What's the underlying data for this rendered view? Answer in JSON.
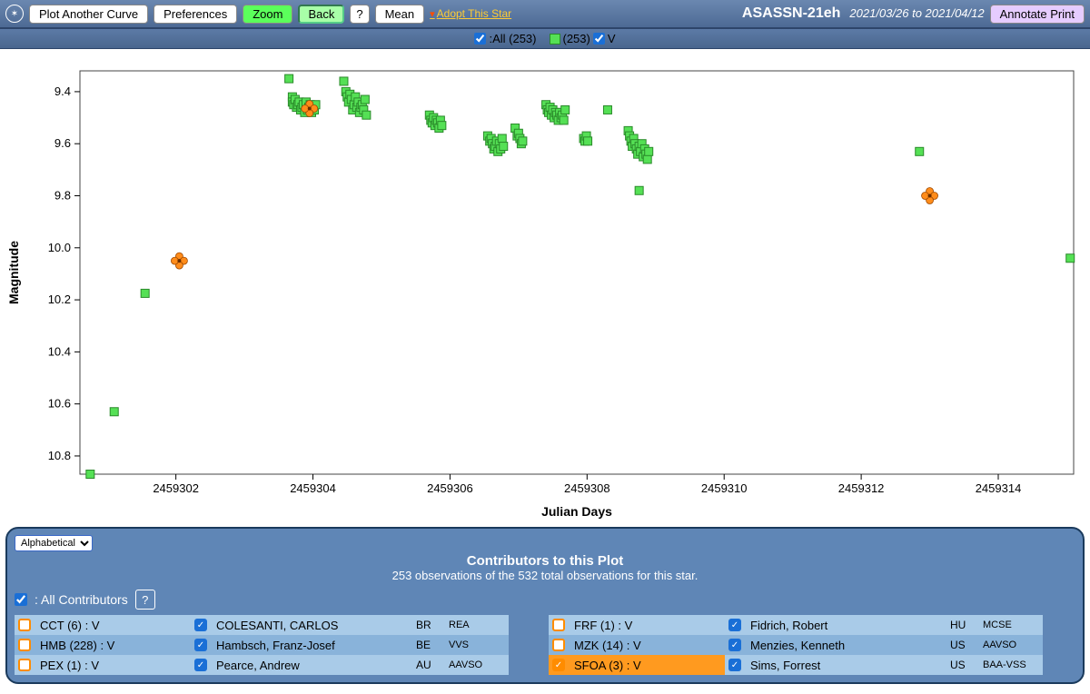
{
  "toolbar": {
    "plot_another": "Plot Another Curve",
    "preferences": "Preferences",
    "zoom": "Zoom",
    "back": "Back",
    "help": "?",
    "mean": "Mean",
    "adopt": "Adopt This Star",
    "annotate": "Annotate Print",
    "star_name": "ASASSN-21eh",
    "date_range": "2021/03/26 to 2021/04/12"
  },
  "legend": {
    "all_label": ":All (253)",
    "series_label": "(253)",
    "band": "V"
  },
  "chart": {
    "type": "scatter",
    "x_label": "Julian Days",
    "y_label": "Magnitude",
    "background": "#ffffff",
    "border": "#444444",
    "tick_font": 13,
    "label_font": 14,
    "x_ticks": [
      2459302,
      2459304,
      2459306,
      2459308,
      2459310,
      2459312,
      2459314
    ],
    "y_ticks": [
      9.4,
      9.6,
      9.8,
      10.0,
      10.2,
      10.4,
      10.6,
      10.8
    ],
    "xlim": [
      2459300.6,
      2459315.1
    ],
    "ylim": [
      10.87,
      9.32
    ],
    "marker_size": 9,
    "marker_color": "#55e055",
    "marker_stroke": "#2a8a2a",
    "alt_marker_color": "#ff8c1a",
    "points_green": [
      [
        2459300.75,
        10.87
      ],
      [
        2459301.1,
        10.63
      ],
      [
        2459301.55,
        10.175
      ],
      [
        2459303.65,
        9.35
      ],
      [
        2459303.7,
        9.42
      ],
      [
        2459303.7,
        9.44
      ],
      [
        2459303.72,
        9.45
      ],
      [
        2459303.74,
        9.43
      ],
      [
        2459303.76,
        9.46
      ],
      [
        2459303.78,
        9.45
      ],
      [
        2459303.8,
        9.44
      ],
      [
        2459303.82,
        9.47
      ],
      [
        2459303.84,
        9.46
      ],
      [
        2459303.86,
        9.45
      ],
      [
        2459303.88,
        9.48
      ],
      [
        2459303.9,
        9.44
      ],
      [
        2459303.92,
        9.47
      ],
      [
        2459303.94,
        9.46
      ],
      [
        2459303.96,
        9.45
      ],
      [
        2459303.98,
        9.48
      ],
      [
        2459304.0,
        9.46
      ],
      [
        2459304.02,
        9.47
      ],
      [
        2459304.04,
        9.45
      ],
      [
        2459304.45,
        9.36
      ],
      [
        2459304.48,
        9.4
      ],
      [
        2459304.5,
        9.42
      ],
      [
        2459304.52,
        9.44
      ],
      [
        2459304.54,
        9.41
      ],
      [
        2459304.56,
        9.43
      ],
      [
        2459304.58,
        9.47
      ],
      [
        2459304.6,
        9.45
      ],
      [
        2459304.62,
        9.42
      ],
      [
        2459304.64,
        9.46
      ],
      [
        2459304.66,
        9.44
      ],
      [
        2459304.68,
        9.48
      ],
      [
        2459304.7,
        9.46
      ],
      [
        2459304.72,
        9.45
      ],
      [
        2459304.74,
        9.47
      ],
      [
        2459304.76,
        9.43
      ],
      [
        2459304.78,
        9.49
      ],
      [
        2459305.7,
        9.49
      ],
      [
        2459305.72,
        9.51
      ],
      [
        2459305.74,
        9.52
      ],
      [
        2459305.76,
        9.5
      ],
      [
        2459305.78,
        9.53
      ],
      [
        2459305.8,
        9.51
      ],
      [
        2459305.82,
        9.52
      ],
      [
        2459305.84,
        9.54
      ],
      [
        2459305.86,
        9.51
      ],
      [
        2459305.88,
        9.53
      ],
      [
        2459306.55,
        9.57
      ],
      [
        2459306.58,
        9.59
      ],
      [
        2459306.6,
        9.58
      ],
      [
        2459306.62,
        9.6
      ],
      [
        2459306.64,
        9.62
      ],
      [
        2459306.66,
        9.61
      ],
      [
        2459306.68,
        9.59
      ],
      [
        2459306.7,
        9.63
      ],
      [
        2459306.72,
        9.6
      ],
      [
        2459306.74,
        9.62
      ],
      [
        2459306.76,
        9.58
      ],
      [
        2459306.78,
        9.61
      ],
      [
        2459306.95,
        9.54
      ],
      [
        2459306.98,
        9.57
      ],
      [
        2459307.0,
        9.56
      ],
      [
        2459307.02,
        9.58
      ],
      [
        2459307.04,
        9.6
      ],
      [
        2459307.06,
        9.59
      ],
      [
        2459307.4,
        9.45
      ],
      [
        2459307.42,
        9.47
      ],
      [
        2459307.44,
        9.48
      ],
      [
        2459307.46,
        9.46
      ],
      [
        2459307.48,
        9.49
      ],
      [
        2459307.5,
        9.47
      ],
      [
        2459307.52,
        9.5
      ],
      [
        2459307.54,
        9.48
      ],
      [
        2459307.56,
        9.49
      ],
      [
        2459307.58,
        9.51
      ],
      [
        2459307.6,
        9.48
      ],
      [
        2459307.62,
        9.5
      ],
      [
        2459307.64,
        9.49
      ],
      [
        2459307.66,
        9.51
      ],
      [
        2459307.68,
        9.47
      ],
      [
        2459307.95,
        9.58
      ],
      [
        2459307.97,
        9.59
      ],
      [
        2459307.99,
        9.57
      ],
      [
        2459308.01,
        9.59
      ],
      [
        2459308.3,
        9.47
      ],
      [
        2459308.6,
        9.55
      ],
      [
        2459308.62,
        9.57
      ],
      [
        2459308.64,
        9.59
      ],
      [
        2459308.66,
        9.61
      ],
      [
        2459308.68,
        9.58
      ],
      [
        2459308.7,
        9.6
      ],
      [
        2459308.72,
        9.62
      ],
      [
        2459308.74,
        9.64
      ],
      [
        2459308.76,
        9.61
      ],
      [
        2459308.78,
        9.63
      ],
      [
        2459308.8,
        9.6
      ],
      [
        2459308.82,
        9.65
      ],
      [
        2459308.84,
        9.62
      ],
      [
        2459308.86,
        9.64
      ],
      [
        2459308.88,
        9.66
      ],
      [
        2459308.9,
        9.63
      ],
      [
        2459308.76,
        9.78
      ],
      [
        2459312.85,
        9.63
      ],
      [
        2459315.05,
        10.04
      ]
    ],
    "points_orange": [
      [
        2459302.05,
        10.05
      ],
      [
        2459303.95,
        9.465
      ],
      [
        2459313.0,
        9.8
      ]
    ]
  },
  "contributors": {
    "sort_label": "Alphabetical",
    "title": "Contributors to this Plot",
    "subtitle": "253 observations of the 532 total observations for this star.",
    "all_label": ": All Contributors",
    "help": "?",
    "rows": [
      {
        "cb1_checked": false,
        "cb1_filled": false,
        "obs_label": "CCT (6) : V",
        "cb2": true,
        "name": "COLESANTI, CARLOS",
        "cc": "BR",
        "affil": "REA",
        "shade": "light",
        "highlight": false
      },
      {
        "cb1_checked": false,
        "cb1_filled": false,
        "obs_label": "HMB (228) : V",
        "cb2": true,
        "name": "Hambsch, Franz-Josef",
        "cc": "BE",
        "affil": "VVS",
        "shade": "mid",
        "highlight": false
      },
      {
        "cb1_checked": false,
        "cb1_filled": false,
        "obs_label": "PEX (1) : V",
        "cb2": true,
        "name": "Pearce, Andrew",
        "cc": "AU",
        "affil": "AAVSO",
        "shade": "light",
        "highlight": false
      },
      {
        "cb1_checked": false,
        "cb1_filled": false,
        "obs_label": "FRF (1) : V",
        "cb2": true,
        "name": "Fidrich, Robert",
        "cc": "HU",
        "affil": "MCSE",
        "shade": "light",
        "highlight": false
      },
      {
        "cb1_checked": false,
        "cb1_filled": false,
        "obs_label": "MZK (14) : V",
        "cb2": true,
        "name": "Menzies, Kenneth",
        "cc": "US",
        "affil": "AAVSO",
        "shade": "mid",
        "highlight": false
      },
      {
        "cb1_checked": true,
        "cb1_filled": true,
        "obs_label": "SFOA (3) : V",
        "cb2": true,
        "name": "Sims, Forrest",
        "cc": "US",
        "affil": "BAA-VSS",
        "shade": "light",
        "highlight": true
      }
    ]
  }
}
